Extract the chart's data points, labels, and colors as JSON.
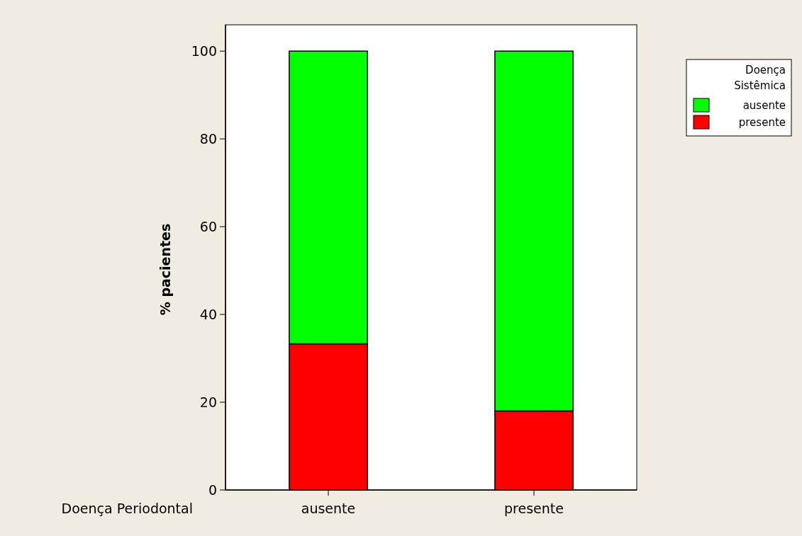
{
  "chart_data": {
    "type": "bar",
    "stacked": true,
    "ylabel": "% pacientes",
    "xlabel": "Doença Periodontal",
    "legend_title": "Doença Sistêmica",
    "legend": "right",
    "categories": [
      "ausente",
      "presente"
    ],
    "series": [
      {
        "name": "presente",
        "color": "#ff0000",
        "values": [
          33.3,
          18.0
        ]
      },
      {
        "name": "ausente",
        "color": "#00ff00",
        "values": [
          66.7,
          82.0
        ]
      }
    ],
    "ylim": [
      0,
      106
    ],
    "yticks": [
      0,
      20,
      40,
      60,
      80,
      100
    ]
  }
}
